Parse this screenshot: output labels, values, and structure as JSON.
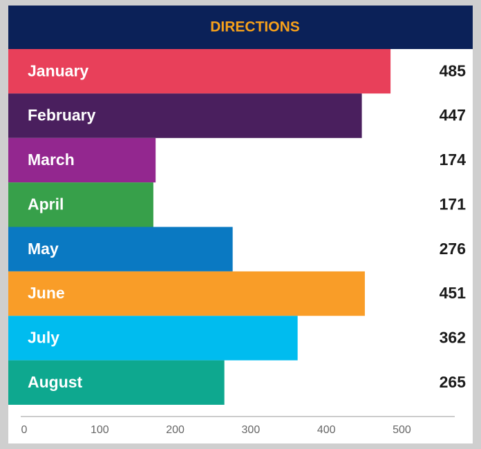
{
  "chart_data": {
    "type": "bar",
    "orientation": "horizontal",
    "title": "DIRECTIONS",
    "categories": [
      "January",
      "February",
      "March",
      "April",
      "May",
      "June",
      "July",
      "August"
    ],
    "values": [
      485,
      447,
      174,
      171,
      276,
      451,
      362,
      265
    ],
    "colors": [
      "#e8405a",
      "#4a1f5e",
      "#93278f",
      "#37a04a",
      "#0a79c2",
      "#f99d28",
      "#00bcef",
      "#0ea88f"
    ],
    "xlim": [
      0,
      570
    ],
    "xticks": [
      0,
      100,
      200,
      300,
      400,
      500
    ]
  }
}
